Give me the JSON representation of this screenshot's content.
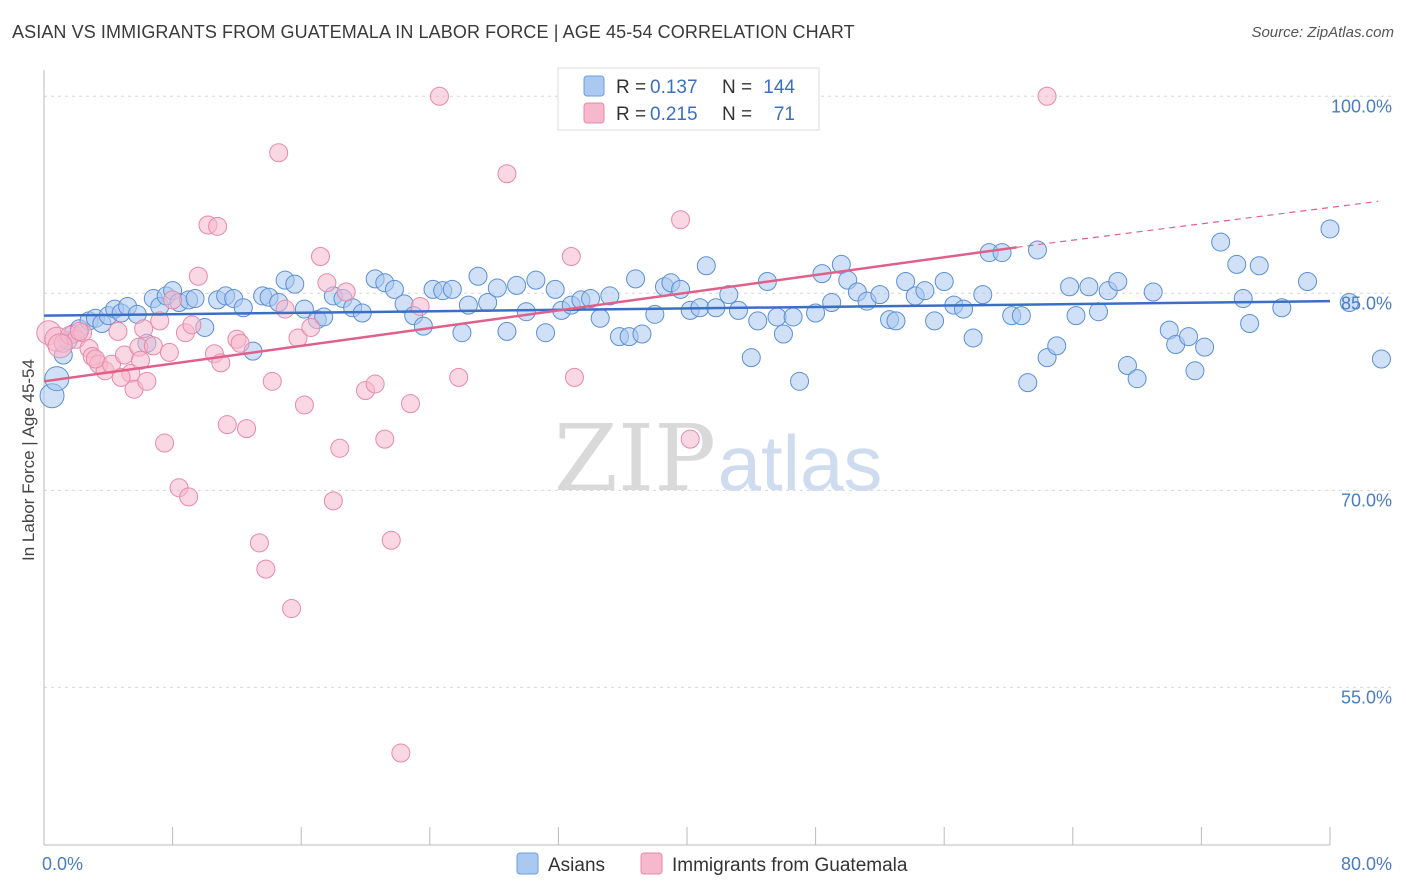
{
  "title": "ASIAN VS IMMIGRANTS FROM GUATEMALA IN LABOR FORCE | AGE 45-54 CORRELATION CHART",
  "source": "Source: ZipAtlas.com",
  "watermark": {
    "zip": "ZIP",
    "atlas": "atlas"
  },
  "legend_top": [
    {
      "r_label": "R =",
      "r_value": "0.137",
      "n_label": "N =",
      "n_value": "144",
      "color": "#aac8f0",
      "stroke": "#6a9ee0"
    },
    {
      "r_label": "R =",
      "r_value": "0.215",
      "n_label": "N =",
      "n_value": "71",
      "color": "#f5b8cc",
      "stroke": "#e889a8"
    }
  ],
  "chart_data": {
    "type": "scatter",
    "xlabel": "",
    "ylabel": "In Labor Force | Age 45-54",
    "xlim": [
      0,
      80
    ],
    "ylim": [
      43,
      102
    ],
    "x_tick_labels": [
      {
        "value": 0,
        "label": "0.0%"
      },
      {
        "value": 80,
        "label": "80.0%"
      }
    ],
    "y_tick_labels": [
      {
        "value": 100,
        "label": "100.0%"
      },
      {
        "value": 85,
        "label": "85.0%"
      },
      {
        "value": 70,
        "label": "70.0%"
      },
      {
        "value": 55,
        "label": "55.0%"
      }
    ],
    "legend_placement": "top-center",
    "grid": true,
    "series": [
      {
        "name": "Asians",
        "color": "#aac8f0",
        "stroke": "#5b8fd6",
        "trend": {
          "x0": 0,
          "y0": 83.3,
          "x1": 80,
          "y1": 84.4,
          "color": "#3b6fc4"
        },
        "points": [
          [
            0.5,
            77.2
          ],
          [
            0.8,
            78.5
          ],
          [
            1.2,
            80.3
          ],
          [
            1.5,
            81.4
          ],
          [
            1.8,
            81.9
          ],
          [
            2.2,
            82.3
          ],
          [
            2.8,
            82.9
          ],
          [
            3.2,
            83.1
          ],
          [
            3.6,
            82.7
          ],
          [
            4.0,
            83.3
          ],
          [
            4.4,
            83.8
          ],
          [
            4.8,
            83.5
          ],
          [
            5.2,
            84.0
          ],
          [
            5.8,
            83.4
          ],
          [
            6.4,
            81.2
          ],
          [
            6.8,
            84.6
          ],
          [
            7.2,
            84.0
          ],
          [
            7.6,
            84.8
          ],
          [
            8.0,
            85.2
          ],
          [
            8.4,
            84.3
          ],
          [
            9.0,
            84.5
          ],
          [
            9.4,
            84.6
          ],
          [
            10.0,
            82.4
          ],
          [
            10.8,
            84.5
          ],
          [
            11.3,
            84.8
          ],
          [
            11.8,
            84.6
          ],
          [
            12.4,
            83.9
          ],
          [
            13.0,
            80.6
          ],
          [
            13.6,
            84.8
          ],
          [
            14.0,
            84.7
          ],
          [
            14.6,
            84.3
          ],
          [
            15.0,
            86.0
          ],
          [
            15.6,
            85.7
          ],
          [
            16.2,
            83.8
          ],
          [
            17.0,
            83.0
          ],
          [
            17.4,
            83.2
          ],
          [
            18.0,
            84.8
          ],
          [
            18.6,
            84.6
          ],
          [
            19.2,
            83.9
          ],
          [
            19.8,
            83.5
          ],
          [
            20.6,
            86.1
          ],
          [
            21.2,
            85.8
          ],
          [
            21.8,
            85.3
          ],
          [
            22.4,
            84.2
          ],
          [
            23.0,
            83.3
          ],
          [
            23.6,
            82.5
          ],
          [
            24.2,
            85.3
          ],
          [
            24.8,
            85.2
          ],
          [
            25.4,
            85.3
          ],
          [
            26.0,
            82.0
          ],
          [
            26.4,
            84.1
          ],
          [
            27.0,
            86.3
          ],
          [
            27.6,
            84.3
          ],
          [
            28.2,
            85.4
          ],
          [
            28.8,
            82.1
          ],
          [
            29.4,
            85.6
          ],
          [
            30.0,
            83.6
          ],
          [
            30.6,
            86.0
          ],
          [
            31.2,
            82.0
          ],
          [
            31.8,
            85.3
          ],
          [
            32.2,
            83.7
          ],
          [
            32.8,
            84.1
          ],
          [
            33.4,
            84.5
          ],
          [
            34.0,
            84.6
          ],
          [
            34.6,
            83.1
          ],
          [
            35.2,
            84.8
          ],
          [
            35.8,
            81.7
          ],
          [
            36.4,
            81.7
          ],
          [
            36.8,
            86.1
          ],
          [
            37.2,
            81.9
          ],
          [
            38.0,
            83.4
          ],
          [
            38.6,
            85.5
          ],
          [
            39.0,
            85.8
          ],
          [
            39.6,
            85.3
          ],
          [
            40.2,
            83.7
          ],
          [
            40.8,
            83.9
          ],
          [
            41.2,
            87.1
          ],
          [
            41.8,
            83.9
          ],
          [
            42.6,
            84.9
          ],
          [
            43.2,
            83.7
          ],
          [
            44.0,
            80.1
          ],
          [
            44.4,
            82.9
          ],
          [
            45.0,
            85.9
          ],
          [
            45.6,
            83.2
          ],
          [
            46.0,
            81.9
          ],
          [
            46.6,
            83.2
          ],
          [
            47.0,
            78.3
          ],
          [
            48.0,
            83.5
          ],
          [
            48.4,
            86.5
          ],
          [
            49.0,
            84.3
          ],
          [
            49.6,
            87.2
          ],
          [
            50.0,
            86.0
          ],
          [
            50.6,
            85.1
          ],
          [
            51.2,
            84.4
          ],
          [
            52.0,
            84.9
          ],
          [
            52.6,
            83.0
          ],
          [
            53.0,
            82.9
          ],
          [
            53.6,
            85.9
          ],
          [
            54.2,
            84.8
          ],
          [
            54.8,
            85.2
          ],
          [
            55.4,
            82.9
          ],
          [
            56.0,
            85.9
          ],
          [
            56.6,
            84.1
          ],
          [
            57.2,
            83.8
          ],
          [
            57.8,
            81.6
          ],
          [
            58.4,
            84.9
          ],
          [
            58.8,
            88.1
          ],
          [
            59.6,
            88.1
          ],
          [
            60.2,
            83.3
          ],
          [
            60.8,
            83.3
          ],
          [
            61.2,
            78.2
          ],
          [
            61.8,
            88.3
          ],
          [
            62.4,
            80.1
          ],
          [
            63.0,
            81.0
          ],
          [
            63.8,
            85.5
          ],
          [
            64.2,
            83.3
          ],
          [
            65.0,
            85.5
          ],
          [
            65.6,
            83.6
          ],
          [
            66.2,
            85.2
          ],
          [
            66.8,
            85.9
          ],
          [
            67.4,
            79.5
          ],
          [
            68.0,
            78.5
          ],
          [
            69.0,
            85.1
          ],
          [
            70.0,
            82.2
          ],
          [
            70.4,
            81.1
          ],
          [
            71.2,
            81.7
          ],
          [
            71.6,
            79.1
          ],
          [
            72.2,
            80.9
          ],
          [
            73.2,
            88.9
          ],
          [
            74.2,
            87.2
          ],
          [
            74.6,
            84.6
          ],
          [
            75.0,
            82.7
          ],
          [
            75.6,
            87.1
          ],
          [
            77.0,
            83.9
          ],
          [
            78.6,
            85.9
          ],
          [
            80.0,
            89.9
          ],
          [
            81.2,
            84.3
          ],
          [
            83.2,
            80.0
          ]
        ]
      },
      {
        "name": "Immigrants from Guatemala",
        "color": "#f5b8cc",
        "stroke": "#e889a8",
        "trend": {
          "x0": 0,
          "y0": 78.3,
          "x1": 60.5,
          "y1": 88.5,
          "x2": 83,
          "y2": 92.0,
          "color": "#e0608a"
        },
        "points": [
          [
            0.3,
            82.0
          ],
          [
            0.8,
            81.5
          ],
          [
            1.2,
            81.2
          ],
          [
            1.6,
            81.8
          ],
          [
            2.0,
            81.5
          ],
          [
            2.4,
            82.0
          ],
          [
            2.8,
            80.8
          ],
          [
            3.0,
            80.2
          ],
          [
            3.4,
            79.6
          ],
          [
            3.8,
            79.1
          ],
          [
            4.2,
            79.6
          ],
          [
            4.6,
            82.1
          ],
          [
            5.0,
            80.3
          ],
          [
            5.4,
            78.9
          ],
          [
            5.6,
            77.7
          ],
          [
            5.9,
            80.9
          ],
          [
            6.0,
            79.9
          ],
          [
            6.4,
            78.3
          ],
          [
            6.8,
            81.0
          ],
          [
            7.2,
            82.9
          ],
          [
            7.5,
            73.6
          ],
          [
            8.0,
            84.5
          ],
          [
            8.4,
            70.2
          ],
          [
            8.8,
            82.0
          ],
          [
            9.0,
            69.5
          ],
          [
            9.6,
            86.3
          ],
          [
            10.2,
            90.2
          ],
          [
            10.6,
            80.4
          ],
          [
            10.8,
            90.1
          ],
          [
            11.4,
            75.0
          ],
          [
            12.0,
            81.5
          ],
          [
            12.6,
            74.7
          ],
          [
            13.4,
            66.0
          ],
          [
            13.8,
            64.0
          ],
          [
            14.2,
            78.3
          ],
          [
            14.6,
            95.7
          ],
          [
            15.0,
            83.8
          ],
          [
            15.4,
            61.0
          ],
          [
            15.8,
            81.6
          ],
          [
            16.2,
            76.5
          ],
          [
            16.6,
            82.4
          ],
          [
            17.2,
            87.8
          ],
          [
            17.6,
            85.8
          ],
          [
            18.0,
            69.2
          ],
          [
            18.4,
            73.2
          ],
          [
            18.8,
            85.1
          ],
          [
            20.0,
            77.6
          ],
          [
            20.6,
            78.1
          ],
          [
            21.2,
            73.9
          ],
          [
            21.6,
            66.2
          ],
          [
            22.2,
            50.0
          ],
          [
            22.8,
            76.6
          ],
          [
            23.4,
            84.0
          ],
          [
            24.6,
            100.0
          ],
          [
            25.8,
            78.6
          ],
          [
            28.8,
            94.1
          ],
          [
            32.8,
            87.8
          ],
          [
            33.0,
            78.6
          ],
          [
            38.0,
            100.0
          ],
          [
            39.6,
            90.6
          ],
          [
            40.2,
            73.9
          ],
          [
            62.4,
            100.0
          ],
          [
            2.2,
            82.1
          ],
          [
            3.2,
            80.0
          ],
          [
            4.8,
            78.6
          ],
          [
            6.2,
            82.3
          ],
          [
            7.8,
            80.5
          ],
          [
            9.2,
            82.6
          ],
          [
            11.0,
            79.7
          ],
          [
            12.2,
            81.2
          ],
          [
            1.0,
            81.0
          ]
        ]
      }
    ]
  },
  "bottom_legend": [
    {
      "label": "Asians",
      "color": "#aac8f0",
      "stroke": "#6a9ee0"
    },
    {
      "label": "Immigrants from Guatemala",
      "color": "#f5b8cc",
      "stroke": "#e889a8"
    }
  ]
}
